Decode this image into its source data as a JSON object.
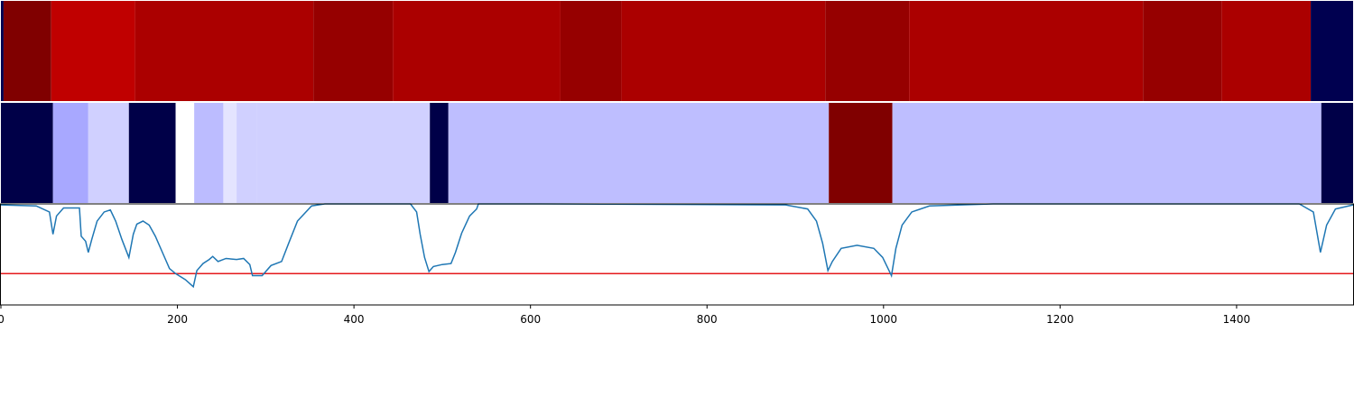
{
  "chart_data": [
    {
      "type": "strip",
      "xlim": [
        0,
        1532
      ],
      "edges": [
        0,
        3,
        57,
        152,
        354,
        444,
        634,
        703,
        934,
        1029,
        1294,
        1383,
        1484,
        1532
      ],
      "colors": [
        "#000050",
        "#800000",
        "#c00000",
        "#ab0000",
        "#960000",
        "#ab0000",
        "#960000",
        "#ab0000",
        "#960000",
        "#ab0000",
        "#960000",
        "#ab0000",
        "#000050"
      ]
    },
    {
      "type": "strip",
      "xlim": [
        0,
        1532
      ],
      "edges": [
        0,
        59,
        99,
        145,
        198,
        219,
        252,
        267,
        290,
        486,
        507,
        938,
        1010,
        1496,
        1532
      ],
      "colors": [
        "#000048",
        "#a8a8ff",
        "#d0d0ff",
        "#000048",
        "#ffffff",
        "#bcbcff",
        "#e4e4ff",
        "#d0d0ff",
        "#d0d0ff",
        "#000048",
        "#bebeff",
        "#800000",
        "#bebeff",
        "#000048"
      ]
    },
    {
      "type": "line",
      "xlim": [
        0,
        1532
      ],
      "ylim": [
        0,
        1
      ],
      "color": "#1f77b4",
      "xticks": [
        0,
        200,
        400,
        600,
        800,
        1000,
        1200,
        1400
      ],
      "threshold": 0.31,
      "threshold_color": "#e41a1c",
      "x": [
        0,
        40,
        55,
        59,
        63,
        71,
        89,
        91,
        96,
        99,
        103,
        109,
        117,
        124,
        130,
        137,
        145,
        150,
        154,
        161,
        168,
        175,
        183,
        191,
        198,
        209,
        218,
        222,
        229,
        236,
        240,
        246,
        255,
        267,
        275,
        282,
        285,
        296,
        306,
        318,
        326,
        336,
        352,
        367,
        464,
        471,
        475,
        480,
        485,
        490,
        500,
        510,
        515,
        522,
        531,
        539,
        541,
        612,
        889,
        914,
        924,
        931,
        937,
        942,
        952,
        970,
        989,
        999,
        1009,
        1014,
        1021,
        1032,
        1052,
        1124,
        1471,
        1487,
        1495,
        1502,
        1512,
        1532
      ],
      "values": [
        0.99,
        0.98,
        0.92,
        0.7,
        0.88,
        0.96,
        0.96,
        0.68,
        0.63,
        0.52,
        0.65,
        0.83,
        0.92,
        0.94,
        0.83,
        0.65,
        0.47,
        0.7,
        0.8,
        0.83,
        0.79,
        0.68,
        0.52,
        0.36,
        0.31,
        0.25,
        0.18,
        0.34,
        0.41,
        0.45,
        0.48,
        0.43,
        0.46,
        0.45,
        0.46,
        0.4,
        0.29,
        0.29,
        0.39,
        0.43,
        0.61,
        0.83,
        0.98,
        1.0,
        1.0,
        0.92,
        0.7,
        0.47,
        0.33,
        0.38,
        0.4,
        0.41,
        0.52,
        0.71,
        0.88,
        0.95,
        1.0,
        1.0,
        0.99,
        0.95,
        0.83,
        0.61,
        0.34,
        0.43,
        0.56,
        0.59,
        0.56,
        0.47,
        0.29,
        0.56,
        0.79,
        0.92,
        0.98,
        1.0,
        1.0,
        0.92,
        0.52,
        0.79,
        0.95,
        0.99
      ]
    }
  ]
}
